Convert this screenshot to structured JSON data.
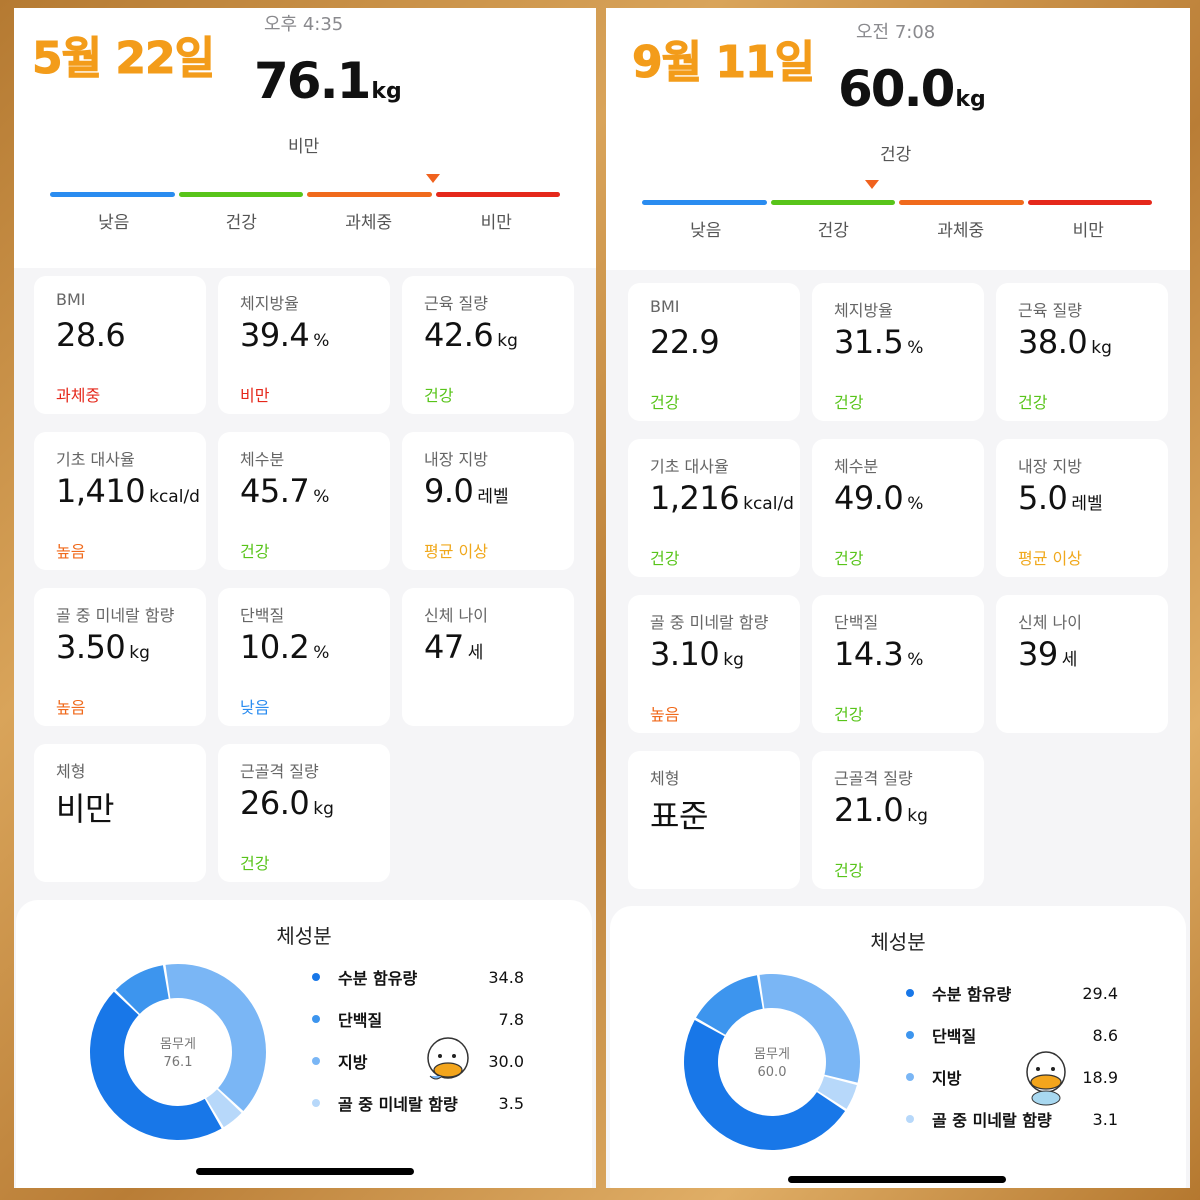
{
  "left": {
    "date": "5월 22일",
    "time": "오후 4:35",
    "weight": "76.1",
    "weight_unit": "kg",
    "weight_status": "비만",
    "scale_labels": [
      "낮음",
      "건강",
      "과체중",
      "비만"
    ],
    "scale_level": 3,
    "metrics": [
      {
        "label": "BMI",
        "value": "28.6",
        "unit": "",
        "status": "과체중",
        "status_color": "#e5281b"
      },
      {
        "label": "체지방율",
        "value": "39.4",
        "unit": "%",
        "status": "비만",
        "status_color": "#e5281b"
      },
      {
        "label": "근육 질량",
        "value": "42.6",
        "unit": "kg",
        "status": "건강",
        "status_color": "#58c41a"
      },
      {
        "label": "기초 대사율",
        "value": "1,410",
        "unit": "kcal/d",
        "status": "높음",
        "status_color": "#f06a1c"
      },
      {
        "label": "체수분",
        "value": "45.7",
        "unit": "%",
        "status": "건강",
        "status_color": "#58c41a"
      },
      {
        "label": "내장 지방",
        "value": "9.0",
        "unit": "레벨",
        "status": "평균 이상",
        "status_color": "#f0a81c"
      },
      {
        "label": "골 중 미네랄 함량",
        "value": "3.50",
        "unit": "kg",
        "status": "높음",
        "status_color": "#f06a1c"
      },
      {
        "label": "단백질",
        "value": "10.2",
        "unit": "%",
        "status": "낮음",
        "status_color": "#2a8cf0"
      },
      {
        "label": "신체 나이",
        "value": "47",
        "unit": "세",
        "status": "",
        "status_color": "#000000"
      },
      {
        "label": "체형",
        "value": "비만",
        "unit": "",
        "status": "",
        "status_color": "#000000"
      },
      {
        "label": "근골격 질량",
        "value": "26.0",
        "unit": "kg",
        "status": "건강",
        "status_color": "#58c41a"
      }
    ],
    "composition": {
      "title": "체성분",
      "center_label": "몸무게",
      "center_value": "76.1",
      "items": [
        {
          "name": "수분 함유량",
          "value": "34.8",
          "color": "#1877e8"
        },
        {
          "name": "단백질",
          "value": "7.8",
          "color": "#3d95ee"
        },
        {
          "name": "지방",
          "value": "30.0",
          "color": "#7ab6f5"
        },
        {
          "name": "골 중 미네랄 함량",
          "value": "3.5",
          "color": "#b7d8fa"
        }
      ]
    }
  },
  "right": {
    "date": "9월 11일",
    "time": "오전 7:08",
    "weight": "60.0",
    "weight_unit": "kg",
    "weight_status": "건강",
    "scale_labels": [
      "낮음",
      "건강",
      "과체중",
      "비만"
    ],
    "scale_level": 1,
    "metrics": [
      {
        "label": "BMI",
        "value": "22.9",
        "unit": "",
        "status": "건강",
        "status_color": "#58c41a"
      },
      {
        "label": "체지방율",
        "value": "31.5",
        "unit": "%",
        "status": "건강",
        "status_color": "#58c41a"
      },
      {
        "label": "근육 질량",
        "value": "38.0",
        "unit": "kg",
        "status": "건강",
        "status_color": "#58c41a"
      },
      {
        "label": "기초 대사율",
        "value": "1,216",
        "unit": "kcal/d",
        "status": "건강",
        "status_color": "#58c41a"
      },
      {
        "label": "체수분",
        "value": "49.0",
        "unit": "%",
        "status": "건강",
        "status_color": "#58c41a"
      },
      {
        "label": "내장 지방",
        "value": "5.0",
        "unit": "레벨",
        "status": "평균 이상",
        "status_color": "#f0a81c"
      },
      {
        "label": "골 중 미네랄 함량",
        "value": "3.10",
        "unit": "kg",
        "status": "높음",
        "status_color": "#f06a1c"
      },
      {
        "label": "단백질",
        "value": "14.3",
        "unit": "%",
        "status": "건강",
        "status_color": "#58c41a"
      },
      {
        "label": "신체 나이",
        "value": "39",
        "unit": "세",
        "status": "",
        "status_color": "#000000"
      },
      {
        "label": "체형",
        "value": "표준",
        "unit": "",
        "status": "",
        "status_color": "#000000"
      },
      {
        "label": "근골격 질량",
        "value": "21.0",
        "unit": "kg",
        "status": "건강",
        "status_color": "#58c41a"
      }
    ],
    "composition": {
      "title": "체성분",
      "center_label": "몸무게",
      "center_value": "60.0",
      "items": [
        {
          "name": "수분 함유량",
          "value": "29.4",
          "color": "#1877e8"
        },
        {
          "name": "단백질",
          "value": "8.6",
          "color": "#3d95ee"
        },
        {
          "name": "지방",
          "value": "18.9",
          "color": "#7ab6f5"
        },
        {
          "name": "골 중 미네랄 함량",
          "value": "3.1",
          "color": "#b7d8fa"
        }
      ]
    }
  },
  "scale_colors": [
    "#2a8cf0",
    "#58c41a",
    "#f06a1c",
    "#e5281b"
  ]
}
